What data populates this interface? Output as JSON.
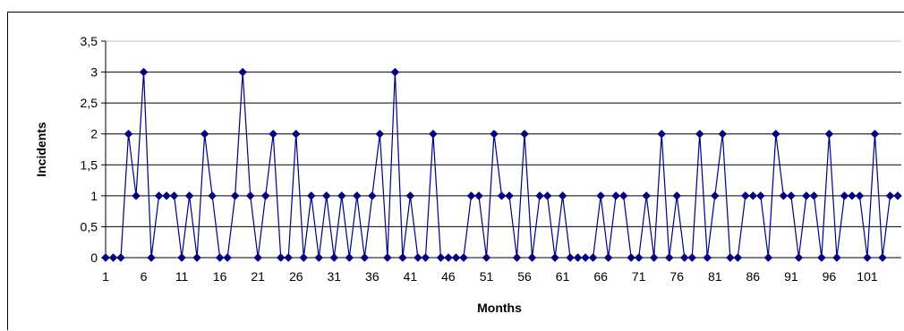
{
  "chart_data": {
    "type": "line",
    "title": "",
    "xlabel": "Months",
    "ylabel": "Incidents",
    "ylim": [
      0,
      3.5
    ],
    "y_ticks": [
      "0",
      "0,5",
      "1",
      "1,5",
      "2",
      "2,5",
      "3",
      "3,5"
    ],
    "x_ticks": [
      "1",
      "6",
      "11",
      "16",
      "21",
      "26",
      "31",
      "36",
      "41",
      "46",
      "51",
      "56",
      "61",
      "66",
      "71",
      "76",
      "81",
      "86",
      "91",
      "96",
      "101"
    ],
    "grid": true,
    "legend": false,
    "series": [
      {
        "color": "#000080",
        "marker": "diamond",
        "x": [
          1,
          2,
          3,
          4,
          5,
          6,
          7,
          8,
          9,
          10,
          11,
          12,
          13,
          14,
          15,
          16,
          17,
          18,
          19,
          20,
          21,
          22,
          23,
          24,
          25,
          26,
          27,
          28,
          29,
          30,
          31,
          32,
          33,
          34,
          35,
          36,
          37,
          38,
          39,
          40,
          41,
          42,
          43,
          44,
          45,
          46,
          47,
          48,
          49,
          50,
          51,
          52,
          53,
          54,
          55,
          56,
          57,
          58,
          59,
          60,
          61,
          62,
          63,
          64,
          65,
          66,
          67,
          68,
          69,
          70,
          71,
          72,
          73,
          74,
          75,
          76,
          77,
          78,
          79,
          80,
          81,
          82,
          83,
          84,
          85,
          86,
          87,
          88,
          89,
          90,
          91,
          92,
          93,
          94,
          95,
          96,
          97,
          98,
          99,
          100,
          101,
          102,
          103,
          104,
          105
        ],
        "values": [
          0,
          0,
          0,
          2,
          1,
          3,
          0,
          1,
          1,
          1,
          0,
          1,
          0,
          2,
          1,
          0,
          0,
          1,
          3,
          1,
          0,
          1,
          2,
          0,
          0,
          2,
          0,
          1,
          0,
          1,
          0,
          1,
          0,
          1,
          0,
          1,
          2,
          0,
          3,
          0,
          1,
          0,
          0,
          2,
          0,
          0,
          0,
          0,
          1,
          1,
          0,
          2,
          1,
          1,
          0,
          2,
          0,
          1,
          1,
          0,
          1,
          0,
          0,
          0,
          0,
          1,
          0,
          1,
          1,
          0,
          0,
          1,
          0,
          2,
          0,
          1,
          0,
          0,
          2,
          0,
          1,
          2,
          0,
          0,
          1,
          1,
          1,
          0,
          2,
          1,
          1,
          0,
          1,
          1,
          0,
          2,
          0,
          1,
          1,
          1,
          0,
          2,
          0,
          1,
          1
        ]
      }
    ]
  }
}
